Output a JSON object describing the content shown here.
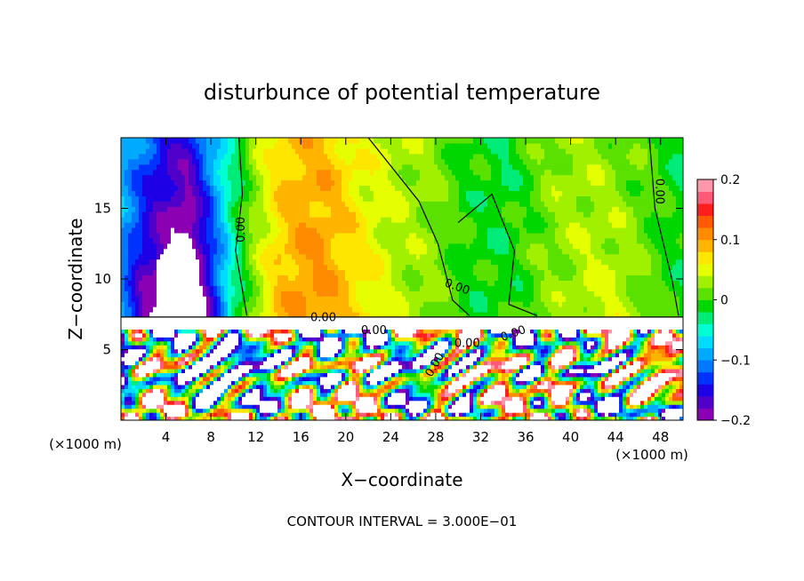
{
  "chart_data": {
    "type": "heatmap",
    "title": "disturbunce of potential temperature",
    "xlabel": "X−coordinate",
    "ylabel": "Z−coordinate",
    "x_unit_left": "(×1000 m)",
    "x_unit_right": "(×1000 m)",
    "footer": "CONTOUR INTERVAL = 3.000E−01",
    "xlim": [
      0,
      50
    ],
    "ylim": [
      0,
      20
    ],
    "x_ticks": [
      4,
      8,
      12,
      16,
      20,
      24,
      28,
      32,
      36,
      40,
      44,
      48
    ],
    "y_ticks": [
      5,
      10,
      15
    ],
    "x_tick_labels": [
      "4",
      "8",
      "12",
      "16",
      "20",
      "24",
      "28",
      "32",
      "36",
      "40",
      "44",
      "48"
    ],
    "y_tick_labels": [
      "5",
      "10",
      "15"
    ],
    "contour_labels": [
      "0.00",
      "0.00",
      "0.00",
      "0.00",
      "0.00",
      "0.00",
      "0.00",
      "0.00"
    ],
    "colorbar": {
      "range": [
        -0.2,
        0.2
      ],
      "tick_values": [
        0.2,
        0.1,
        0,
        -0.1,
        -0.2
      ],
      "tick_labels": [
        "0.2",
        "0.1",
        "0",
        "−0.1",
        "−0.2"
      ],
      "colors": [
        "#8c00b4",
        "#5000c8",
        "#1e00e6",
        "#0032ff",
        "#0078ff",
        "#00aaff",
        "#00dcff",
        "#00ffd2",
        "#00eb78",
        "#00d700",
        "#5ae100",
        "#a0f000",
        "#e6ff00",
        "#ffe600",
        "#ffb400",
        "#ff8c00",
        "#ff5a00",
        "#ff1e1e",
        "#ff5a78",
        "#ff96aa"
      ]
    },
    "regions_description_free": true,
    "upper_field": {
      "x": [
        0,
        2,
        4,
        6,
        8,
        10,
        12,
        14,
        16,
        18,
        20,
        22,
        24,
        26,
        28,
        30,
        32,
        34,
        36,
        38,
        40,
        42,
        44,
        46,
        48,
        50
      ],
      "values_at_z18": [
        -0.08,
        -0.12,
        -0.16,
        -0.17,
        -0.1,
        -0.03,
        0.03,
        0.07,
        0.09,
        0.09,
        0.07,
        0.05,
        0.04,
        0.03,
        0.02,
        0.0,
        -0.01,
        -0.02,
        0.0,
        0.02,
        0.03,
        0.03,
        0.02,
        0.01,
        0.0,
        -0.02
      ],
      "values_at_z10": [
        -0.1,
        -0.17,
        -0.2,
        -0.25,
        -0.15,
        -0.04,
        0.03,
        0.08,
        0.1,
        0.1,
        0.08,
        0.06,
        0.04,
        0.03,
        0.02,
        0.0,
        -0.01,
        -0.01,
        0.0,
        0.02,
        0.03,
        0.04,
        0.04,
        0.02,
        0.0,
        -0.01
      ]
    }
  }
}
